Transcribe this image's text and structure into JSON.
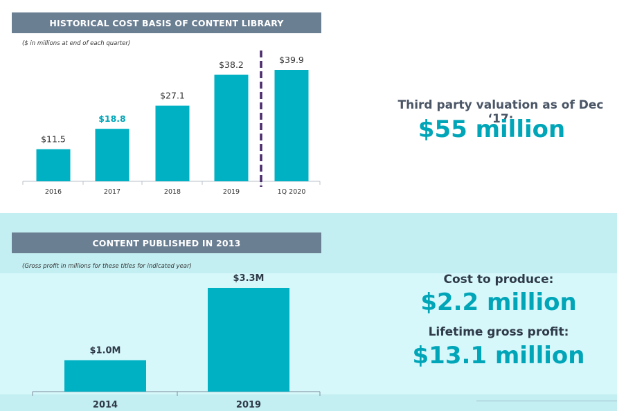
{
  "colors": {
    "bar": "#00b0c3",
    "accent": "#00a5b8",
    "header": "#6b7f93",
    "divider": "#4a2a6b"
  },
  "chart_data": [
    {
      "type": "bar",
      "title": "HISTORICAL COST BASIS OF CONTENT LIBRARY",
      "subtitle": "($ in millions at end of each quarter)",
      "categories": [
        "2016",
        "2017",
        "2018",
        "2019",
        "1Q 2020"
      ],
      "values": [
        11.5,
        18.8,
        27.1,
        38.2,
        39.9
      ],
      "labels": [
        "$11.5",
        "$18.8",
        "$27.1",
        "$38.2",
        "$39.9"
      ],
      "highlight_label_index": 1,
      "divider_between": [
        "2019",
        "1Q 2020"
      ],
      "ylim": [
        0,
        45
      ]
    },
    {
      "type": "bar",
      "title": "CONTENT PUBLISHED IN 2013",
      "subtitle": "(Gross profit in millions for these titles for indicated year)",
      "categories": [
        "2014",
        "2019"
      ],
      "values": [
        1.0,
        3.3
      ],
      "labels": [
        "$1.0M",
        "$3.3M"
      ],
      "ylim": [
        0,
        3.6
      ]
    }
  ],
  "callouts": {
    "valuation_label": "Third party valuation as of Dec ‘17:",
    "valuation_value": "$55 million",
    "cost_label": "Cost to produce:",
    "cost_value": "$2.2 million",
    "profit_label": "Lifetime gross profit:",
    "profit_value": "$13.1 million"
  }
}
